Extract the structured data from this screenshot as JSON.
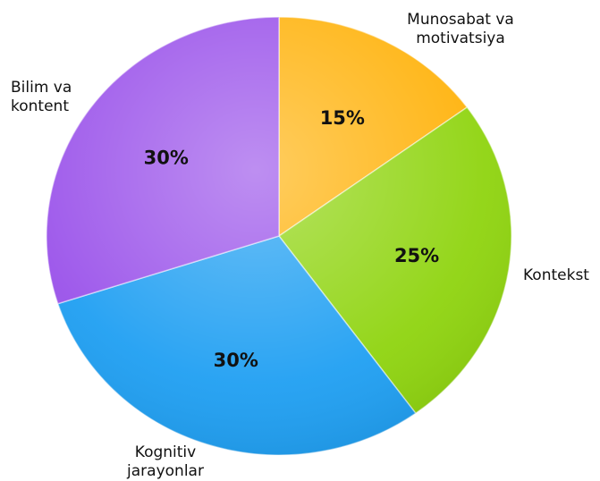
{
  "chart_data": {
    "type": "pie",
    "categories": [
      "Munosabat va motivatsiya",
      "Kontekst",
      "Kognitiv jarayonlar",
      "Bilim va kontent"
    ],
    "values": [
      15,
      25,
      30,
      30
    ],
    "value_labels": [
      "15%",
      "25%",
      "30%",
      "30%"
    ],
    "colors": [
      "#ffb20a",
      "#8fd40f",
      "#1f9ff2",
      "#9a52ea"
    ]
  }
}
